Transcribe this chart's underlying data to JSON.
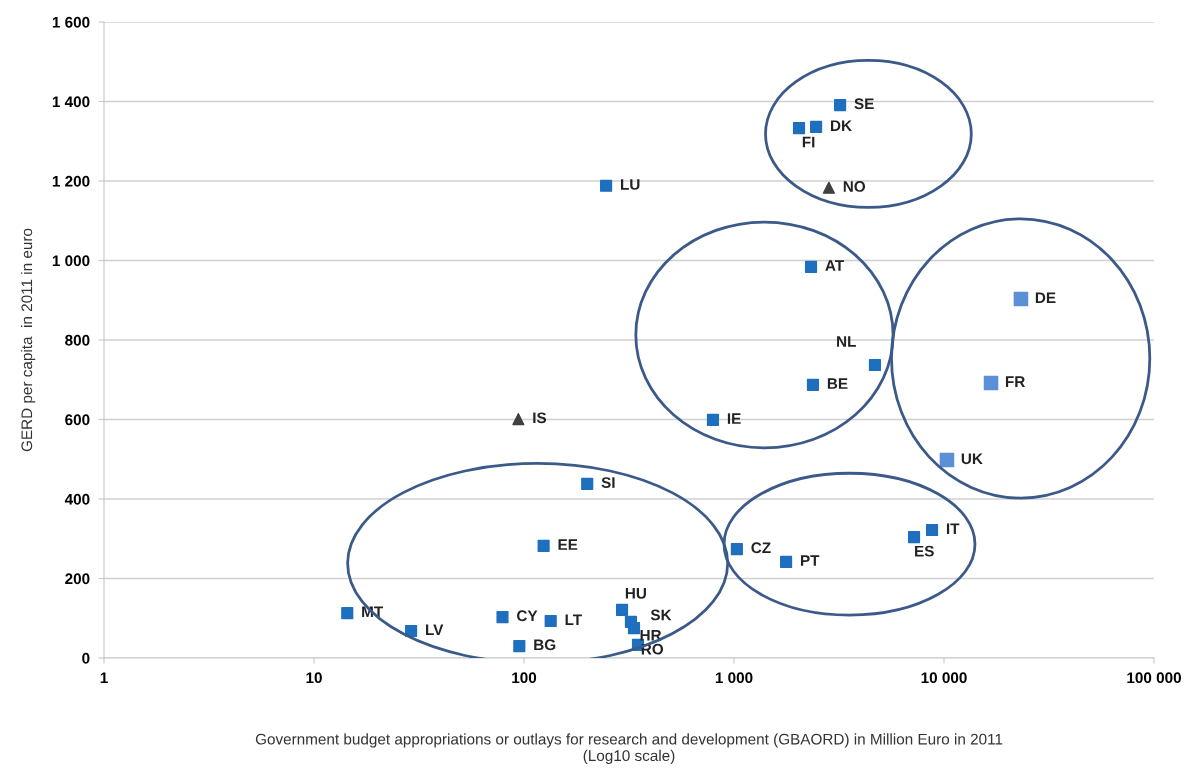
{
  "chart_data": {
    "type": "scatter",
    "xlabel": "Government budget appropriations or outlays for research and development (GBAORD) in Million Euro in 2011\n(Log10 scale)",
    "ylabel": "GERD per capita  in 2011 in euro",
    "log": "x",
    "grid": "y",
    "legend": false,
    "xlim": [
      1,
      100000
    ],
    "xticks": [
      1,
      10,
      100,
      {
        "value": 1000,
        "label": "1 000"
      },
      {
        "value": 10000,
        "label": "10 000"
      },
      {
        "value": 100000,
        "label": "100 000"
      }
    ],
    "ylim": [
      0,
      1600
    ],
    "yticks": [
      0,
      200,
      400,
      600,
      800,
      {
        "value": 1000,
        "label": "1 000"
      },
      {
        "value": 1200,
        "label": "1 200"
      },
      {
        "value": 1400,
        "label": "1 400"
      },
      {
        "value": 1600,
        "label": "1 600"
      }
    ],
    "series": [
      {
        "color": "#1f6fbf",
        "marker": "square",
        "x": [
          14.4,
          29,
          79,
          95,
          134,
          124,
          200,
          246,
          293,
          323,
          334,
          349,
          794,
          1032,
          1770,
          2377,
          2327,
          4690,
          2040,
          2460,
          3200,
          7200,
          8770
        ],
        "values": [
          113,
          68,
          103,
          30,
          93,
          282,
          438,
          1188,
          121,
          91,
          75,
          33,
          599,
          274,
          242,
          687,
          984,
          737,
          1333,
          1336,
          1391,
          304,
          322
        ]
      },
      {
        "color": "#404040",
        "marker": "triangle",
        "x": [
          94,
          2830
        ],
        "values": [
          601,
          1183
        ]
      },
      {
        "color": "#5b8fd6",
        "marker": "square",
        "x": [
          10330,
          16750,
          23250
        ],
        "values": [
          498,
          692,
          903
        ]
      }
    ],
    "annotations": [
      {
        "text": "MT",
        "x": 14.4,
        "y": 113
      },
      {
        "text": "LV",
        "x": 29,
        "y": 68
      },
      {
        "text": "CY",
        "x": 79,
        "y": 103
      },
      {
        "text": "BG",
        "x": 95,
        "y": 30
      },
      {
        "text": "LT",
        "x": 134,
        "y": 93
      },
      {
        "text": "EE",
        "x": 124,
        "y": 282
      },
      {
        "text": "SI",
        "x": 200,
        "y": 438
      },
      {
        "text": "LU",
        "x": 246,
        "y": 1188
      },
      {
        "text": "HU",
        "x": 293,
        "y": 121
      },
      {
        "text": "SK",
        "x": 323,
        "y": 91
      },
      {
        "text": "HR",
        "x": 334,
        "y": 75
      },
      {
        "text": "RO",
        "x": 349,
        "y": 33
      },
      {
        "text": "IE",
        "x": 794,
        "y": 599
      },
      {
        "text": "CZ",
        "x": 1032,
        "y": 274
      },
      {
        "text": "PT",
        "x": 1770,
        "y": 242
      },
      {
        "text": "BE",
        "x": 2377,
        "y": 687
      },
      {
        "text": "AT",
        "x": 2327,
        "y": 984
      },
      {
        "text": "NL",
        "x": 4690,
        "y": 737
      },
      {
        "text": "FI",
        "x": 2040,
        "y": 1333
      },
      {
        "text": "DK",
        "x": 2460,
        "y": 1336
      },
      {
        "text": "SE",
        "x": 3200,
        "y": 1391
      },
      {
        "text": "ES",
        "x": 7200,
        "y": 304
      },
      {
        "text": "IT",
        "x": 8770,
        "y": 322
      },
      {
        "text": "IS",
        "x": 94,
        "y": 601
      },
      {
        "text": "NO",
        "x": 2830,
        "y": 1183
      },
      {
        "text": "UK",
        "x": 10330,
        "y": 498
      },
      {
        "text": "FR",
        "x": 16750,
        "y": 692
      },
      {
        "text": "DE",
        "x": 23250,
        "y": 903
      }
    ]
  }
}
